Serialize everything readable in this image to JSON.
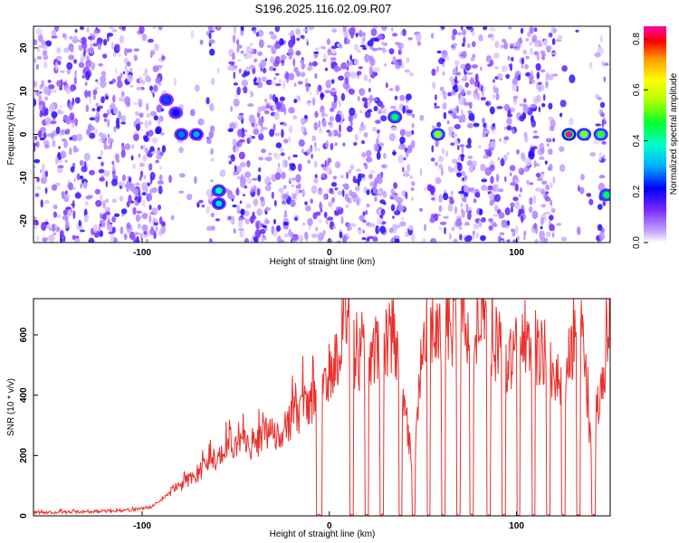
{
  "title": "S196.2025.116.02.09.R07",
  "colors": {
    "snr_line": "#e8312c",
    "axis": "#000000",
    "colorbar": [
      "#ffffff",
      "#9b59ff",
      "#5a1aff",
      "#0000ff",
      "#00aaff",
      "#00ffcc",
      "#00ff33",
      "#aaff00",
      "#ffff00",
      "#ff9900",
      "#ff0000",
      "#ff00aa"
    ]
  },
  "chart_data": [
    {
      "type": "heatmap",
      "title": "S196.2025.116.02.09.R07",
      "xlabel": "Height of straight line (km)",
      "ylabel": "Frequency (Hz)",
      "xlim": [
        -158,
        150
      ],
      "ylim": [
        -25,
        25
      ],
      "xticks": [
        -100,
        0,
        100
      ],
      "yticks": [
        -20,
        -10,
        0,
        10,
        20
      ],
      "colorbar": {
        "label": "Normalized spectral amplitude",
        "range": [
          0,
          0.85
        ],
        "ticks": [
          "0.0",
          "0.2",
          "0.4",
          "0.6",
          "0.8"
        ]
      },
      "gaps_km": [
        [
          -88,
          -65
        ],
        [
          -62,
          -53
        ],
        [
          30,
          33
        ],
        [
          45,
          55
        ],
        [
          62,
          64
        ],
        [
          120,
          143
        ],
        [
          147,
          150
        ]
      ],
      "peaks": [
        {
          "x": -87,
          "y": 8,
          "amplitude": 0.25
        },
        {
          "x": -82,
          "y": 5,
          "amplitude": 0.22
        },
        {
          "x": -79,
          "y": 0,
          "amplitude": 0.28
        },
        {
          "x": -71,
          "y": 0,
          "amplitude": 0.3
        },
        {
          "x": -59,
          "y": -13,
          "amplitude": 0.4
        },
        {
          "x": -59,
          "y": -16,
          "amplitude": 0.35
        },
        {
          "x": 35,
          "y": 4,
          "amplitude": 0.45
        },
        {
          "x": 58,
          "y": 0,
          "amplitude": 0.55
        },
        {
          "x": 128,
          "y": 0,
          "amplitude": 0.85
        },
        {
          "x": 136,
          "y": 0,
          "amplitude": 0.55
        },
        {
          "x": 145,
          "y": 0,
          "amplitude": 0.5
        },
        {
          "x": 148,
          "y": -14,
          "amplitude": 0.45
        }
      ]
    },
    {
      "type": "line",
      "xlabel": "Height of straight line (km)",
      "ylabel": "SNR (10 * v/v)",
      "xlim": [
        -158,
        150
      ],
      "ylim": [
        0,
        720
      ],
      "xticks": [
        -100,
        0,
        100
      ],
      "yticks": [
        0,
        200,
        400,
        600
      ],
      "dropouts_km": [
        [
          -7,
          -4
        ],
        [
          11,
          13
        ],
        [
          19,
          21
        ],
        [
          27,
          29
        ],
        [
          37,
          39
        ],
        [
          44,
          46
        ],
        [
          52,
          54
        ],
        [
          60,
          62
        ],
        [
          68,
          70
        ],
        [
          75,
          77
        ],
        [
          84,
          86
        ],
        [
          92,
          94
        ],
        [
          100,
          102
        ],
        [
          108,
          110
        ],
        [
          116,
          118
        ],
        [
          124,
          126
        ],
        [
          132,
          134
        ],
        [
          140,
          142
        ]
      ],
      "series": [
        {
          "x": [
            -158,
            -120,
            -105,
            -95,
            -90,
            -85,
            -80,
            -75,
            -70,
            -65,
            -60,
            -55,
            -50,
            -45,
            -40,
            -35,
            -30,
            -25,
            -20,
            -15,
            -10,
            -5,
            0,
            5,
            8,
            10,
            15,
            20,
            25,
            30,
            35,
            40,
            45,
            50,
            55,
            60,
            65,
            70,
            75,
            80,
            85,
            90,
            95,
            100,
            105,
            110,
            115,
            120,
            125,
            130,
            135,
            140,
            145,
            150
          ],
          "y": [
            10,
            15,
            20,
            30,
            50,
            80,
            100,
            120,
            140,
            170,
            190,
            210,
            220,
            240,
            240,
            260,
            280,
            290,
            320,
            350,
            380,
            420,
            480,
            520,
            720,
            540,
            500,
            540,
            560,
            570,
            600,
            400,
            120,
            600,
            610,
            620,
            630,
            620,
            620,
            610,
            600,
            560,
            520,
            540,
            600,
            560,
            520,
            480,
            450,
            560,
            600,
            210,
            420,
            650
          ]
        }
      ]
    }
  ]
}
